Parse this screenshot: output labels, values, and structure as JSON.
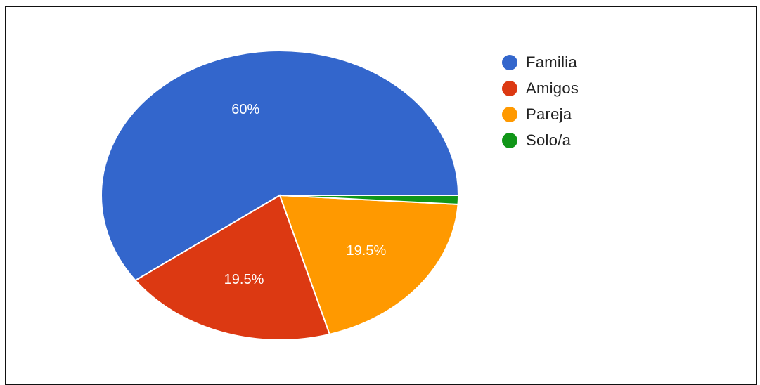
{
  "chart_data": {
    "type": "pie",
    "categories": [
      "Familia",
      "Amigos",
      "Pareja",
      "Solo/a"
    ],
    "values": [
      60,
      19.5,
      19.5,
      1
    ],
    "data_labels": [
      "60%",
      "19.5%",
      "19.5%",
      ""
    ],
    "colors": [
      "#3366cc",
      "#dc3912",
      "#ff9900",
      "#109618"
    ],
    "legend_position": "right"
  }
}
